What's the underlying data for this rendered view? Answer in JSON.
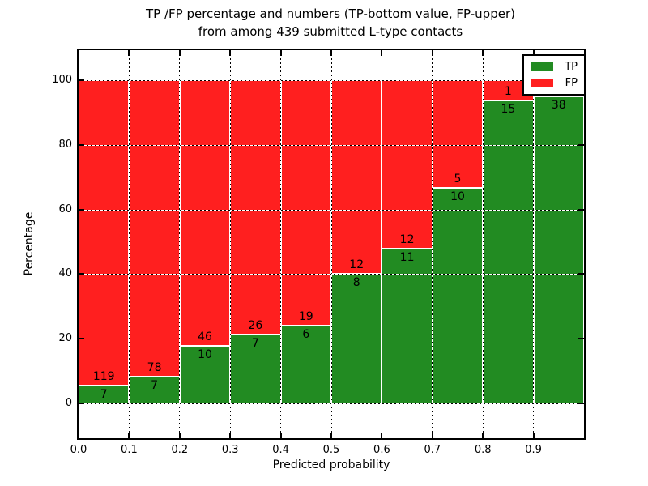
{
  "title": {
    "line1": "TP /FP percentage and numbers (TP-bottom value, FP-upper)",
    "line2": "from among 439 submitted L-type contacts"
  },
  "axes": {
    "xlabel": "Predicted probability",
    "ylabel": "Percentage"
  },
  "legend": {
    "position": "upper right",
    "entries": [
      {
        "label": "TP",
        "color": "#228b22"
      },
      {
        "label": "FP",
        "color": "#ff1f1f"
      }
    ]
  },
  "chart_data": {
    "type": "bar",
    "stacked": true,
    "title": "TP /FP percentage and numbers (TP-bottom value, FP-upper) from among 439 submitted L-type contacts",
    "xlabel": "Predicted probability",
    "ylabel": "Percentage",
    "xlim": [
      0.0,
      1.0
    ],
    "ylim": [
      -11,
      110
    ],
    "grid": true,
    "legend_position": "upper right",
    "x_tick_labels": [
      "0.0",
      "0.1",
      "0.2",
      "0.3",
      "0.4",
      "0.5",
      "0.6",
      "0.7",
      "0.8",
      "0.9"
    ],
    "y_tick_values": [
      0,
      20,
      40,
      60,
      80,
      100
    ],
    "y_tick_labels": [
      "0",
      "20",
      "40",
      "60",
      "80",
      "100"
    ],
    "series": [
      {
        "name": "TP",
        "color": "#228b22"
      },
      {
        "name": "FP",
        "color": "#ff1f1f"
      }
    ],
    "bins": [
      {
        "x0": 0.0,
        "x1": 0.1,
        "tp_label": "7",
        "fp_label": "119",
        "tp_pct": 5.6
      },
      {
        "x0": 0.1,
        "x1": 0.2,
        "tp_label": "7",
        "fp_label": "78",
        "tp_pct": 8.2
      },
      {
        "x0": 0.2,
        "x1": 0.3,
        "tp_label": "10",
        "fp_label": "46",
        "tp_pct": 17.9
      },
      {
        "x0": 0.3,
        "x1": 0.4,
        "tp_label": "7",
        "fp_label": "26",
        "tp_pct": 21.2
      },
      {
        "x0": 0.4,
        "x1": 0.5,
        "tp_label": "6",
        "fp_label": "19",
        "tp_pct": 24.0
      },
      {
        "x0": 0.5,
        "x1": 0.6,
        "tp_label": "8",
        "fp_label": "12",
        "tp_pct": 40.0
      },
      {
        "x0": 0.6,
        "x1": 0.7,
        "tp_label": "11",
        "fp_label": "12",
        "tp_pct": 47.8
      },
      {
        "x0": 0.7,
        "x1": 0.8,
        "tp_label": "10",
        "fp_label": "5",
        "tp_pct": 66.7
      },
      {
        "x0": 0.8,
        "x1": 0.9,
        "tp_label": "15",
        "fp_label": "1",
        "tp_pct": 93.8
      },
      {
        "x0": 0.9,
        "x1": 1.0,
        "tp_label": "38",
        "fp_label": "",
        "tp_pct": 95.0
      }
    ]
  }
}
